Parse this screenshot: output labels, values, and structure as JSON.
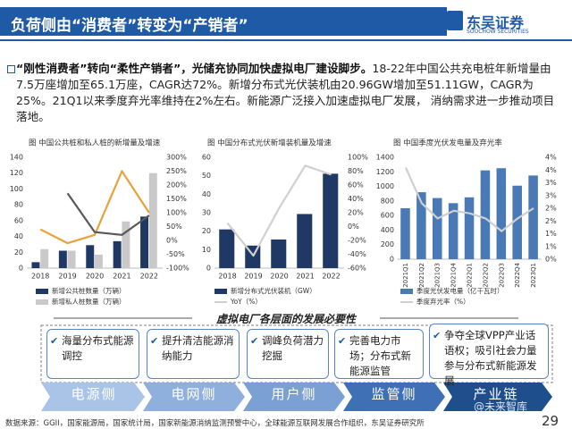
{
  "header": {
    "title": "负荷侧由“消费者”转变为“产销者”",
    "logo_cn": "东吴证券",
    "logo_en": "SOOCHOW SECURITIES"
  },
  "summary": {
    "lead": "“刚性消费者”转向“柔性产销者”，光储充协同加快虚拟电厂建设脚步。",
    "text": "18-22年中国公共充电桩年新增量由7.5万座增加至65.1万座，CAGR达72%。新增分布式光伏装机由20.96GW增加至51.11GW，CAGR为25%。21Q1以来季度弃光率维持在2%左右。新能源广泛接入加速虚拟电厂发展， 消纳需求进一步推动项目落地。"
  },
  "chart_data": [
    {
      "type": "bar",
      "title": "图  中国公共桩和私人桩的新增量及增速",
      "categories": [
        "2018",
        "2019",
        "2020",
        "2021",
        "2022"
      ],
      "series": [
        {
          "name": "新增公共桩数量（万辆）",
          "color": "#1f3864",
          "values": [
            7.5,
            22,
            29,
            34,
            65.1
          ]
        },
        {
          "name": "新增私人桩数量（万辆）",
          "color": "#c9c9c9",
          "values": [
            24,
            22,
            17,
            59,
            120
          ]
        },
        {
          "type": "line",
          "color": "#e9a23b",
          "axis": "y2",
          "values": [
            40,
            -10,
            20,
            250,
            100
          ]
        },
        {
          "type": "line",
          "color": "#595959",
          "axis": "y2",
          "values": [
            null,
            170,
            30,
            20,
            90
          ]
        }
      ],
      "ylim": [
        0,
        140
      ],
      "yticks": [
        0,
        20,
        40,
        60,
        80,
        100,
        120,
        140
      ],
      "y2lim": [
        -100,
        300
      ],
      "y2ticks": [
        {
          "value": -100,
          "label": "-100%"
        },
        {
          "value": -50,
          "label": "-50%"
        },
        {
          "value": 0,
          "label": "0%"
        },
        {
          "value": 50,
          "label": "50%"
        },
        {
          "value": 100,
          "label": "100%"
        },
        {
          "value": 150,
          "label": "150%"
        },
        {
          "value": 200,
          "label": "200%"
        },
        {
          "value": 250,
          "label": "250%"
        },
        {
          "value": 300,
          "label": "300%"
        }
      ],
      "grid": false
    },
    {
      "type": "bar",
      "title": "图  中国分布式光伏新增装机量及增速",
      "categories": [
        "2018",
        "2019",
        "2020",
        "2021",
        "2022"
      ],
      "series": [
        {
          "name": "新增分布式光伏装机（GW）",
          "color": "#1f3864",
          "values": [
            20.96,
            12.2,
            15.5,
            29.3,
            51.11
          ]
        },
        {
          "name": "YoY（%）",
          "type": "line",
          "color": "#d0d0d0",
          "axis": "y2",
          "values": [
            5,
            -42,
            27,
            88,
            75
          ]
        }
      ],
      "ylim": [
        0,
        60
      ],
      "yticks": [
        0,
        10,
        20,
        30,
        40,
        50,
        60
      ],
      "y2lim": [
        -60,
        100
      ],
      "y2ticks": [
        {
          "value": -60,
          "label": "-60%"
        },
        {
          "value": -40,
          "label": "-40%"
        },
        {
          "value": -20,
          "label": "-20%"
        },
        {
          "value": 0,
          "label": "0%"
        },
        {
          "value": 20,
          "label": "20%"
        },
        {
          "value": 40,
          "label": "40%"
        },
        {
          "value": 60,
          "label": "60%"
        },
        {
          "value": 80,
          "label": "80%"
        },
        {
          "value": 100,
          "label": "100%"
        }
      ],
      "grid": false
    },
    {
      "type": "bar",
      "title": "图  中国季度光伏发电量及弃光率",
      "categories": [
        "2021Q1",
        "2021Q2",
        "2021Q3",
        "2021Q4",
        "2022Q1",
        "2022Q2",
        "2022Q3",
        "2022Q4",
        "2023Q1"
      ],
      "series": [
        {
          "name": "季度光伏发电量（亿千瓦时）",
          "color": "#4a7ab5",
          "values": [
            700,
            920,
            840,
            770,
            850,
            1220,
            1250,
            1010,
            1150
          ]
        },
        {
          "name": "季度弃光率（%）",
          "type": "line",
          "color": "#cfcfcf",
          "axis": "y2",
          "values": [
            3.6,
            2.2,
            1.6,
            1.9,
            1.8,
            1.6,
            1.1,
            1.6,
            2.0
          ]
        }
      ],
      "ylim": [
        0,
        1400
      ],
      "yticks": [
        0,
        200,
        400,
        600,
        800,
        1000,
        1200,
        1400
      ],
      "y2lim": [
        0,
        4
      ],
      "y2ticks": [
        {
          "value": 0,
          "label": "0%"
        },
        {
          "value": 0.5,
          "label": "1%"
        },
        {
          "value": 1,
          "label": "1%"
        },
        {
          "value": 1.5,
          "label": "2%"
        },
        {
          "value": 2,
          "label": "2%"
        },
        {
          "value": 2.5,
          "label": "3%"
        },
        {
          "value": 3,
          "label": "3%"
        },
        {
          "value": 3.5,
          "label": "4%"
        },
        {
          "value": 4,
          "label": "4%"
        }
      ],
      "grid": false
    }
  ],
  "section": {
    "title": "虚拟电厂各层面的发展必要性",
    "items": [
      "海量分布式能源调控",
      "提升清洁能源消纳能力",
      "调峰负荷潜力挖掘",
      "完善电力市场；分布式新能源监管",
      "争夺全球VPP产业话语权；吸引社会力量参与分布式新能源发展"
    ],
    "stages": [
      "电源侧",
      "电网侧",
      "用户侧",
      "监管侧",
      "产业链"
    ]
  },
  "footer": {
    "source": "数据来源：GGII，国家能源局，国家统计局，国家新能源消纳监测预警中心，全球能源互联网发展合作组织，东吴证券研究所",
    "page": "29",
    "watermark": "@未来智库"
  }
}
